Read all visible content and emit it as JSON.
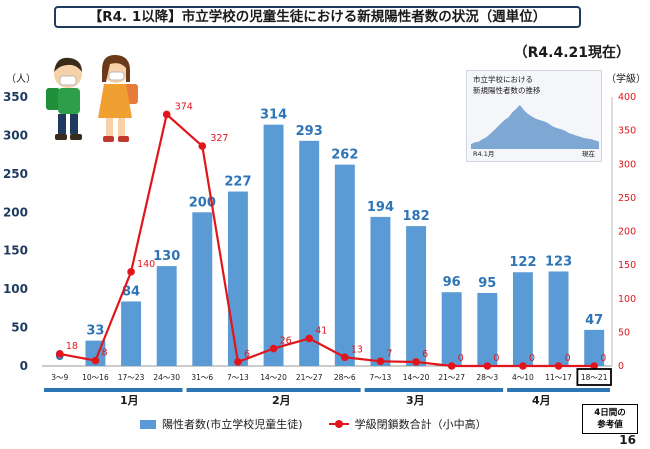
{
  "header": {
    "title": "【R4. 1以降】市立学校の児童生徒における新規陽性者数の状況（週単位）",
    "as_of": "（R4.4.21現在）",
    "page_number": "16"
  },
  "units": {
    "left": "（人）",
    "right": "（学級）"
  },
  "inset": {
    "title_line1": "市立学校における",
    "title_line2": "新規陽性者数の推移",
    "start_label": "R4.1月",
    "end_label": "現在"
  },
  "legend": {
    "bar_label": "陽性者数(市立学校児童生徒)",
    "line_label": "学級閉鎖数合計（小中高）"
  },
  "note_box": {
    "line1": "4日間の",
    "line2": "参考値"
  },
  "months": [
    "1月",
    "2月",
    "3月",
    "4月"
  ],
  "colors": {
    "bar": "#5b9bd5",
    "bar_label": "#2e75b6",
    "line": "#e0161c",
    "month_band": "#2e75b6",
    "title_border": "#1f3a5f"
  },
  "chart_data": {
    "type": "bar+line",
    "categories": [
      "3〜9",
      "10〜16",
      "17〜23",
      "24〜30",
      "31〜6",
      "7〜13",
      "14〜20",
      "21〜27",
      "28〜6",
      "7〜13",
      "14〜20",
      "21〜27",
      "28〜3",
      "4〜10",
      "11〜17",
      "18〜21"
    ],
    "series": [
      {
        "name": "陽性者数(市立学校児童生徒)",
        "type": "bar",
        "axis": "left",
        "values": [
          0,
          33,
          84,
          130,
          200,
          227,
          314,
          293,
          262,
          194,
          182,
          96,
          95,
          122,
          123,
          47
        ]
      },
      {
        "name": "学級閉鎖数合計（小中高）",
        "type": "line",
        "axis": "right",
        "values": [
          18,
          8,
          140,
          374,
          327,
          6,
          26,
          41,
          13,
          7,
          6,
          0,
          0,
          0,
          0,
          0
        ]
      }
    ],
    "y_left": {
      "min": 0,
      "max": 350,
      "ticks": [
        0,
        50,
        100,
        150,
        200,
        250,
        300,
        350
      ]
    },
    "y_right": {
      "min": 0,
      "max": 400,
      "ticks": [
        0,
        50,
        100,
        150,
        200,
        250,
        300,
        350,
        400
      ]
    },
    "month_groups": [
      {
        "label": "1月",
        "from": 0,
        "to": 3
      },
      {
        "label": "2月",
        "from": 4,
        "to": 8
      },
      {
        "label": "3月",
        "from": 9,
        "to": 12
      },
      {
        "label": "4月",
        "from": 13,
        "to": 15
      }
    ],
    "highlighted_category": "18〜21",
    "inset_series": [
      40,
      55,
      60,
      80,
      95,
      120,
      150,
      180,
      210,
      240,
      260,
      300,
      330,
      360,
      320,
      290,
      270,
      250,
      240,
      230,
      220,
      200,
      180,
      170,
      160,
      150,
      130,
      120,
      110,
      100,
      90,
      85,
      80,
      70,
      60
    ]
  }
}
